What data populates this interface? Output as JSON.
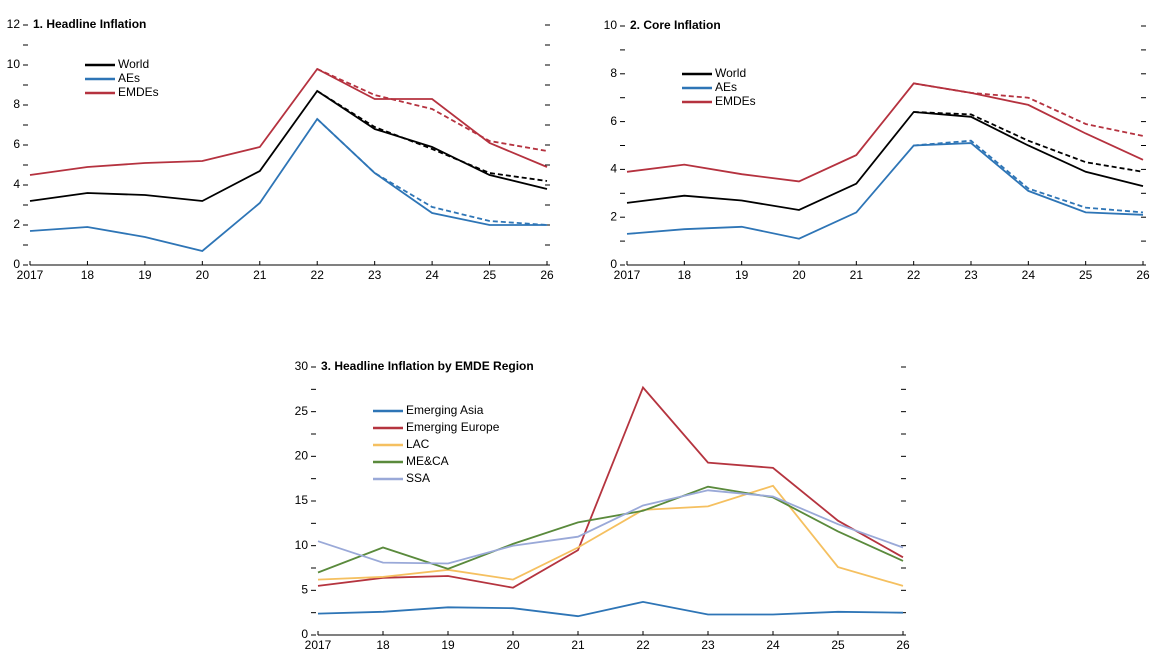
{
  "chart_data": [
    {
      "type": "line",
      "title": "1. Headline Inflation",
      "categories": [
        "2017",
        "18",
        "19",
        "20",
        "21",
        "22",
        "23",
        "24",
        "25",
        "26"
      ],
      "ylim": [
        0,
        12
      ],
      "yticks": [
        0,
        2,
        4,
        6,
        8,
        10,
        12
      ],
      "legend": "upper left",
      "series": [
        {
          "name": "World",
          "color": "#000000",
          "values": [
            3.2,
            3.6,
            3.5,
            3.2,
            4.7,
            8.7,
            6.8,
            5.9,
            4.5,
            3.8
          ]
        },
        {
          "name": "AEs",
          "color": "#2e75b6",
          "values": [
            1.7,
            1.9,
            1.4,
            0.7,
            3.1,
            7.3,
            4.6,
            2.6,
            2.0,
            2.0
          ]
        },
        {
          "name": "EMDEs",
          "color": "#b5323f",
          "values": [
            4.5,
            4.9,
            5.1,
            5.2,
            5.9,
            9.8,
            8.3,
            8.3,
            6.1,
            4.9
          ]
        },
        {
          "color": "#000000",
          "dash": true,
          "values": [
            null,
            null,
            null,
            null,
            null,
            8.7,
            6.9,
            5.8,
            4.6,
            4.2
          ]
        },
        {
          "color": "#2e75b6",
          "dash": true,
          "values": [
            null,
            null,
            null,
            null,
            null,
            7.3,
            4.6,
            2.9,
            2.2,
            2.0
          ]
        },
        {
          "color": "#b5323f",
          "dash": true,
          "values": [
            null,
            null,
            null,
            null,
            null,
            9.8,
            8.5,
            7.8,
            6.2,
            5.7
          ]
        }
      ]
    },
    {
      "type": "line",
      "title": "2. Core Inflation",
      "categories": [
        "2017",
        "18",
        "19",
        "20",
        "21",
        "22",
        "23",
        "24",
        "25",
        "26"
      ],
      "ylim": [
        0,
        10
      ],
      "yticks": [
        0,
        2,
        4,
        6,
        8,
        10
      ],
      "legend": "upper left",
      "series": [
        {
          "name": "World",
          "color": "#000000",
          "values": [
            2.6,
            2.9,
            2.7,
            2.3,
            3.4,
            6.4,
            6.2,
            5.0,
            3.9,
            3.3
          ]
        },
        {
          "name": "AEs",
          "color": "#2e75b6",
          "values": [
            1.3,
            1.5,
            1.6,
            1.1,
            2.2,
            5.0,
            5.1,
            3.1,
            2.2,
            2.1
          ]
        },
        {
          "name": "EMDEs",
          "color": "#b5323f",
          "values": [
            3.9,
            4.2,
            3.8,
            3.5,
            4.6,
            7.6,
            7.2,
            6.7,
            5.5,
            4.4
          ]
        },
        {
          "color": "#000000",
          "dash": true,
          "values": [
            null,
            null,
            null,
            null,
            null,
            6.4,
            6.3,
            5.2,
            4.3,
            3.9
          ]
        },
        {
          "color": "#2e75b6",
          "dash": true,
          "values": [
            null,
            null,
            null,
            null,
            null,
            5.0,
            5.2,
            3.2,
            2.4,
            2.2
          ]
        },
        {
          "color": "#b5323f",
          "dash": true,
          "values": [
            null,
            null,
            null,
            null,
            null,
            7.6,
            7.2,
            7.0,
            5.9,
            5.4
          ]
        }
      ]
    },
    {
      "type": "line",
      "title": "3. Headline Inflation by EMDE Region",
      "categories": [
        "2017",
        "18",
        "19",
        "20",
        "21",
        "22",
        "23",
        "24",
        "25",
        "26"
      ],
      "ylim": [
        0,
        30
      ],
      "yticks": [
        0,
        5,
        10,
        15,
        20,
        25,
        30
      ],
      "legend": "upper left",
      "series": [
        {
          "name": "Emerging Asia",
          "color": "#2e75b6",
          "values": [
            2.4,
            2.6,
            3.1,
            3.0,
            2.1,
            3.7,
            2.3,
            2.3,
            2.6,
            2.5
          ]
        },
        {
          "name": "Emerging Europe",
          "color": "#b5343f",
          "values": [
            5.5,
            6.4,
            6.6,
            5.3,
            9.5,
            27.7,
            19.3,
            18.7,
            12.8,
            8.7
          ]
        },
        {
          "name": "LAC",
          "color": "#f5c060",
          "values": [
            6.2,
            6.5,
            7.3,
            6.2,
            9.8,
            14.0,
            14.4,
            16.7,
            7.6,
            5.5
          ]
        },
        {
          "name": "ME&CA",
          "color": "#5a8a3c",
          "values": [
            7.0,
            9.8,
            7.4,
            10.2,
            12.6,
            13.9,
            16.6,
            15.4,
            11.6,
            8.3
          ]
        },
        {
          "name": "SSA",
          "color": "#9aa9d8",
          "values": [
            10.5,
            8.1,
            8.0,
            10.0,
            11.0,
            14.5,
            16.2,
            15.5,
            12.4,
            9.8
          ]
        }
      ]
    }
  ]
}
